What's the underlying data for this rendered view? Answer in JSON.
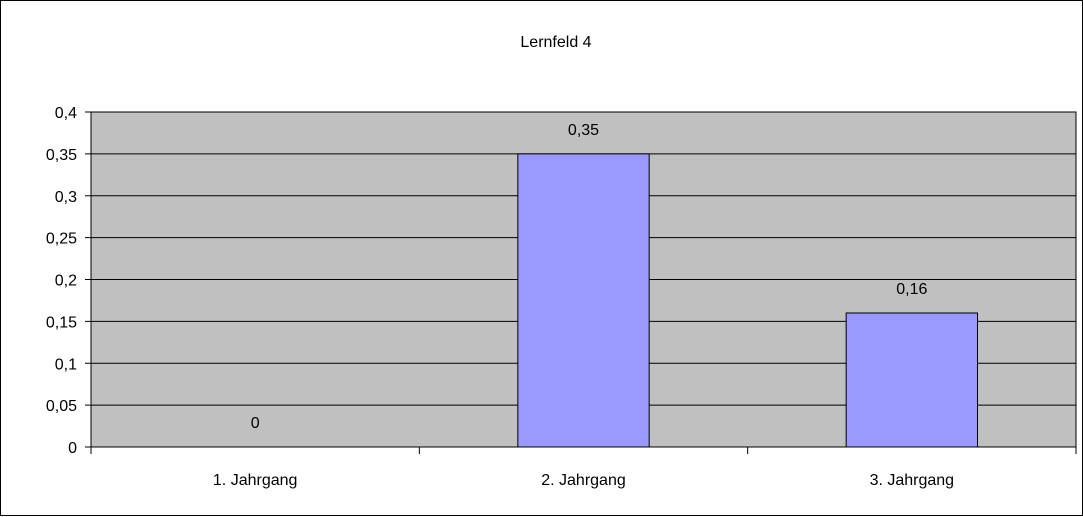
{
  "chart_data": {
    "type": "bar",
    "title": "Lernfeld 4",
    "categories": [
      "1. Jahrgang",
      "2. Jahrgang",
      "3. Jahrgang"
    ],
    "values": [
      0,
      0.35,
      0.16
    ],
    "value_labels": [
      "0",
      "0,35",
      "0,16"
    ],
    "ylim": [
      0,
      0.4
    ],
    "yticks": [
      0,
      0.05,
      0.1,
      0.15,
      0.2,
      0.25,
      0.3,
      0.35,
      0.4
    ],
    "ytick_labels": [
      "0",
      "0,05",
      "0,1",
      "0,15",
      "0,2",
      "0,25",
      "0,3",
      "0,35",
      "0,4"
    ],
    "grid": true,
    "legend": "none",
    "colors": {
      "bar": "#9999ff",
      "plot_background": "#c0c0c0",
      "gridline": "#000000"
    }
  }
}
